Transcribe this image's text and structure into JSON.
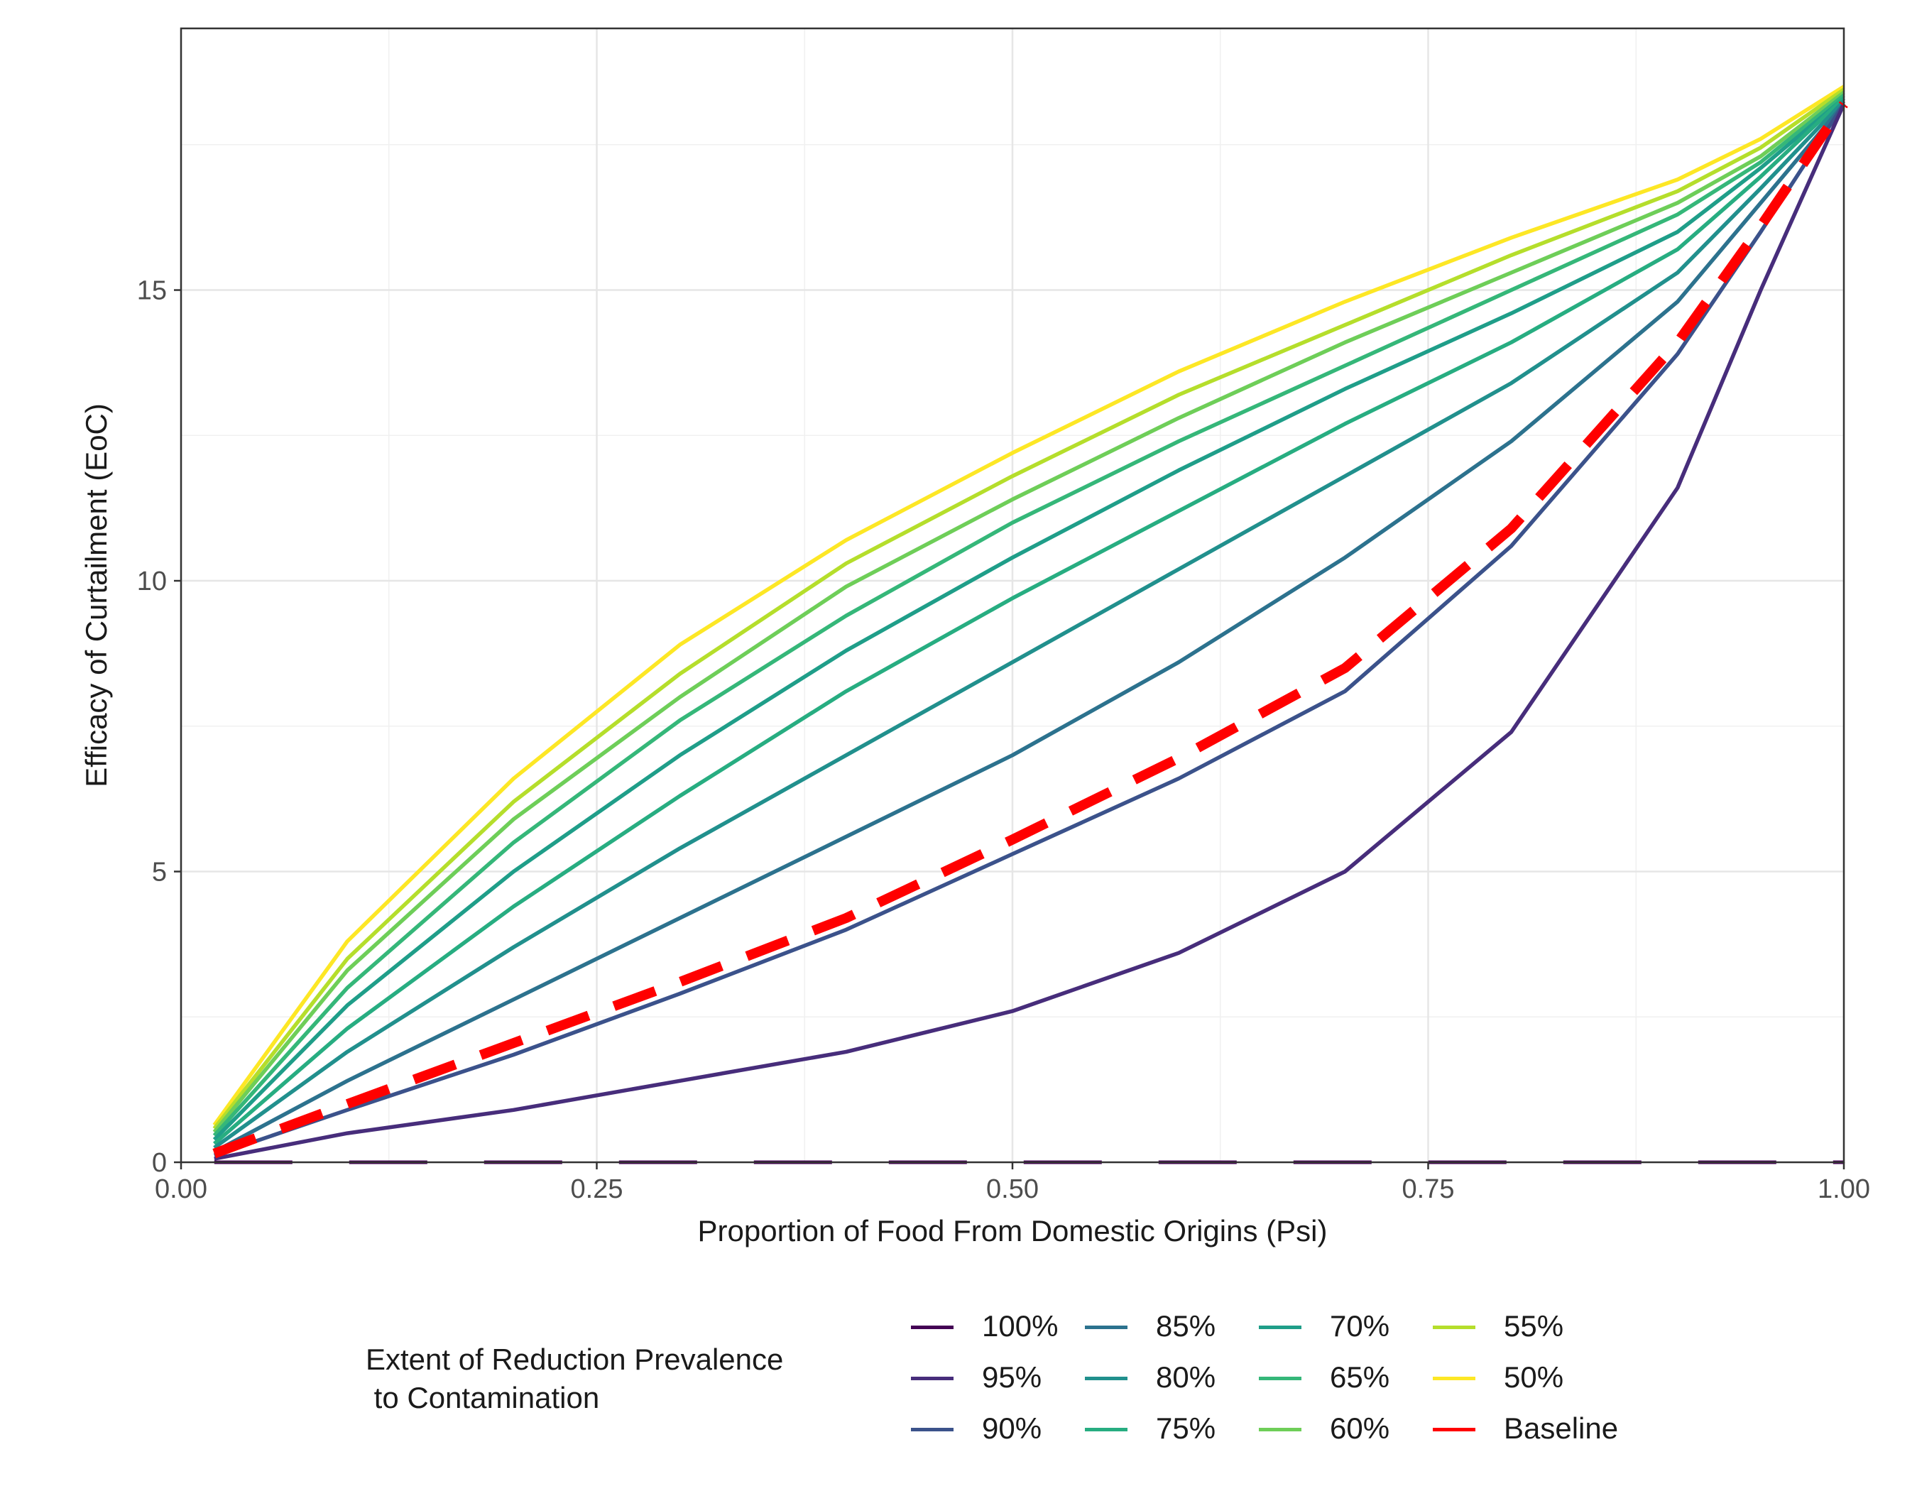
{
  "chart_data": {
    "type": "line",
    "title": "",
    "xlabel": "Proportion of Food From Domestic Origins (Psi)",
    "ylabel": "Efficacy of Curtailment (EoC)",
    "xlim": [
      0,
      1
    ],
    "ylim": [
      0,
      19.5
    ],
    "x_ticks": [
      "0.00",
      "0.25",
      "0.50",
      "0.75",
      "1.00"
    ],
    "y_ticks": [
      "0",
      "5",
      "10",
      "15"
    ],
    "grid": true,
    "legend_title": "Extent of Reduction Prevalence\n to Contamination",
    "legend_position": "bottom",
    "x": [
      0.02,
      0.1,
      0.2,
      0.3,
      0.4,
      0.5,
      0.6,
      0.7,
      0.8,
      0.9,
      0.95,
      1.0
    ],
    "series": [
      {
        "name": "100%",
        "color": "#440154",
        "style": "dashed",
        "values": [
          0,
          0,
          0,
          0,
          0,
          0,
          0,
          0,
          0,
          0,
          0,
          0
        ]
      },
      {
        "name": "95%",
        "color": "#472d7b",
        "style": "solid",
        "values": [
          0.06,
          0.5,
          0.9,
          1.4,
          1.9,
          2.6,
          3.6,
          5.0,
          7.4,
          11.6,
          15.0,
          18.2
        ]
      },
      {
        "name": "90%",
        "color": "#3b528b",
        "style": "solid",
        "values": [
          0.12,
          0.9,
          1.85,
          2.9,
          4.0,
          5.3,
          6.6,
          8.1,
          10.6,
          13.9,
          16.0,
          18.2
        ]
      },
      {
        "name": "85%",
        "color": "#2c728e",
        "style": "solid",
        "values": [
          0.18,
          1.4,
          2.8,
          4.2,
          5.6,
          7.0,
          8.6,
          10.4,
          12.4,
          14.8,
          16.5,
          18.2
        ]
      },
      {
        "name": "80%",
        "color": "#21908d",
        "style": "solid",
        "values": [
          0.25,
          1.9,
          3.7,
          5.4,
          7.0,
          8.6,
          10.2,
          11.8,
          13.4,
          15.3,
          16.75,
          18.25
        ]
      },
      {
        "name": "75%",
        "color": "#27ad81",
        "style": "solid",
        "values": [
          0.32,
          2.3,
          4.4,
          6.3,
          8.1,
          9.7,
          11.2,
          12.7,
          14.1,
          15.7,
          16.95,
          18.3
        ]
      },
      {
        "name": "70%",
        "color": "#1f9e89",
        "style": "solid",
        "values": [
          0.39,
          2.7,
          5.0,
          7.0,
          8.8,
          10.4,
          11.9,
          13.3,
          14.6,
          16.0,
          17.1,
          18.3
        ]
      },
      {
        "name": "65%",
        "color": "#35b779",
        "style": "solid",
        "values": [
          0.46,
          3.0,
          5.5,
          7.6,
          9.4,
          11.0,
          12.4,
          13.7,
          15.0,
          16.3,
          17.2,
          18.35
        ]
      },
      {
        "name": "60%",
        "color": "#6ece58",
        "style": "solid",
        "values": [
          0.52,
          3.3,
          5.9,
          8.0,
          9.9,
          11.4,
          12.8,
          14.1,
          15.3,
          16.5,
          17.3,
          18.4
        ]
      },
      {
        "name": "55%",
        "color": "#b5de2b",
        "style": "solid",
        "values": [
          0.58,
          3.5,
          6.2,
          8.4,
          10.3,
          11.8,
          13.2,
          14.4,
          15.6,
          16.7,
          17.45,
          18.45
        ]
      },
      {
        "name": "50%",
        "color": "#fde725",
        "style": "solid",
        "values": [
          0.64,
          3.8,
          6.6,
          8.9,
          10.7,
          12.2,
          13.6,
          14.8,
          15.9,
          16.9,
          17.6,
          18.5
        ]
      },
      {
        "name": "Baseline",
        "color": "#ff0000",
        "style": "dashed-thick",
        "values": [
          0.15,
          1.0,
          2.05,
          3.1,
          4.2,
          5.55,
          6.95,
          8.5,
          10.9,
          14.1,
          16.1,
          18.2
        ]
      }
    ]
  }
}
